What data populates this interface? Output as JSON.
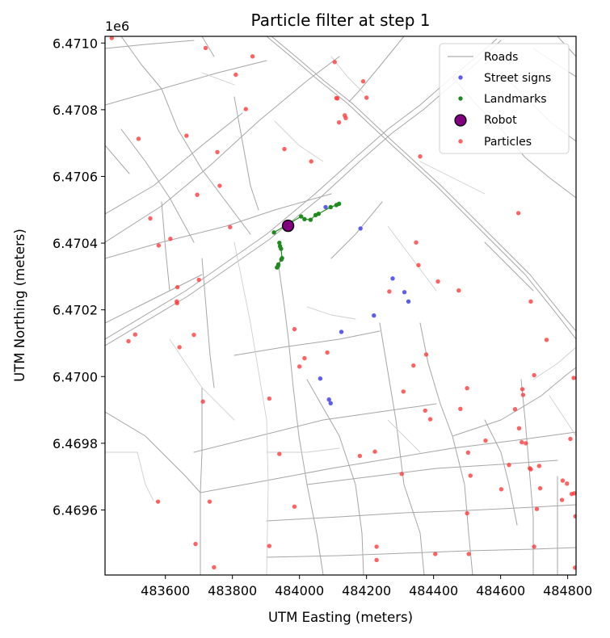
{
  "chart_data": {
    "type": "scatter",
    "title": "Particle filter at step 1",
    "xlabel": "UTM Easting (meters)",
    "ylabel": "UTM Northing (meters)",
    "y_offset_label": "1e6",
    "xlim": [
      483420,
      484825
    ],
    "ylim": [
      6469405,
      6471020
    ],
    "x_ticks": [
      483600,
      483800,
      484000,
      484200,
      484400,
      484600,
      484800
    ],
    "x_tick_labels": [
      "483600",
      "483800",
      "484000",
      "484200",
      "484400",
      "484600",
      "484800"
    ],
    "y_ticks": [
      6469600,
      6469800,
      6470000,
      6470200,
      6470400,
      6470600,
      6470800,
      6471000
    ],
    "y_tick_labels": [
      "6.4696",
      "6.4698",
      "6.4700",
      "6.4702",
      "6.4704",
      "6.4706",
      "6.4708",
      "6.4710"
    ],
    "grid": false,
    "legend_position": "top-right",
    "legend": {
      "roads": "Roads",
      "street_signs": "Street signs",
      "landmarks": "Landmarks",
      "robot": "Robot",
      "particles": "Particles"
    },
    "colors": {
      "roads": "#9a9a9a",
      "street_signs": "#4b4bf0",
      "landmarks": "#1f8a1f",
      "robot": "#800080",
      "particles": "#ff3b3b"
    },
    "series": [
      {
        "name": "Street signs",
        "points": [
          [
            484078,
            6470508
          ],
          [
            484182,
            6470444
          ],
          [
            484278,
            6470294
          ],
          [
            484313,
            6470253
          ],
          [
            484325,
            6470225
          ],
          [
            484222,
            6470183
          ],
          [
            484125,
            6470134
          ],
          [
            484062,
            6469994
          ],
          [
            484088,
            6469931
          ],
          [
            484093,
            6469920
          ]
        ]
      },
      {
        "name": "Landmarks",
        "points": [
          [
            483924,
            6470432
          ],
          [
            484005,
            6470480
          ],
          [
            484015,
            6470472
          ],
          [
            484033,
            6470470
          ],
          [
            484048,
            6470484
          ],
          [
            484057,
            6470488
          ],
          [
            484093,
            6470508
          ],
          [
            484110,
            6470514
          ],
          [
            484118,
            6470518
          ],
          [
            483940,
            6470401
          ],
          [
            483942,
            6470391
          ],
          [
            483945,
            6470383
          ],
          [
            483948,
            6470355
          ],
          [
            483946,
            6470351
          ],
          [
            483937,
            6470336
          ],
          [
            483936,
            6470331
          ],
          [
            483933,
            6470327
          ]
        ]
      },
      {
        "name": "Robot",
        "points": [
          [
            483966,
            6470452
          ]
        ]
      },
      {
        "name": "Particles",
        "points": [
          [
            483440,
            6471015
          ],
          [
            483720,
            6470985
          ],
          [
            483860,
            6470960
          ],
          [
            484105,
            6470943
          ],
          [
            484190,
            6470885
          ],
          [
            483810,
            6470905
          ],
          [
            483840,
            6470802
          ],
          [
            484110,
            6470835
          ],
          [
            484113,
            6470834
          ],
          [
            484200,
            6470836
          ],
          [
            484135,
            6470783
          ],
          [
            484138,
            6470775
          ],
          [
            484118,
            6470762
          ],
          [
            483520,
            6470713
          ],
          [
            483663,
            6470722
          ],
          [
            483755,
            6470673
          ],
          [
            483955,
            6470682
          ],
          [
            484035,
            6470645
          ],
          [
            484360,
            6470660
          ],
          [
            483695,
            6470545
          ],
          [
            483762,
            6470572
          ],
          [
            483555,
            6470474
          ],
          [
            483793,
            6470448
          ],
          [
            483580,
            6470393
          ],
          [
            483615,
            6470413
          ],
          [
            484348,
            6470402
          ],
          [
            484355,
            6470334
          ],
          [
            484653,
            6470490
          ],
          [
            483636,
            6470268
          ],
          [
            483634,
            6470225
          ],
          [
            483635,
            6470220
          ],
          [
            483700,
            6470290
          ],
          [
            484413,
            6470285
          ],
          [
            484475,
            6470258
          ],
          [
            484268,
            6470255
          ],
          [
            484690,
            6470225
          ],
          [
            483510,
            6470126
          ],
          [
            483490,
            6470106
          ],
          [
            483642,
            6470088
          ],
          [
            483685,
            6470125
          ],
          [
            483985,
            6470142
          ],
          [
            484083,
            6470072
          ],
          [
            484015,
            6470055
          ],
          [
            484378,
            6470066
          ],
          [
            484340,
            6470033
          ],
          [
            484000,
            6470030
          ],
          [
            484737,
            6470110
          ],
          [
            484700,
            6470004
          ],
          [
            484818,
            6469996
          ],
          [
            483712,
            6469925
          ],
          [
            483910,
            6469934
          ],
          [
            484310,
            6469955
          ],
          [
            484500,
            6469965
          ],
          [
            484375,
            6469898
          ],
          [
            484390,
            6469872
          ],
          [
            484480,
            6469903
          ],
          [
            484665,
            6469962
          ],
          [
            484667,
            6469945
          ],
          [
            484643,
            6469902
          ],
          [
            484655,
            6469845
          ],
          [
            484663,
            6469803
          ],
          [
            484675,
            6469800
          ],
          [
            484808,
            6469813
          ],
          [
            483940,
            6469768
          ],
          [
            484180,
            6469762
          ],
          [
            484225,
            6469775
          ],
          [
            484503,
            6469772
          ],
          [
            484555,
            6469808
          ],
          [
            484625,
            6469735
          ],
          [
            484687,
            6469725
          ],
          [
            484690,
            6469722
          ],
          [
            484715,
            6469732
          ],
          [
            484510,
            6469703
          ],
          [
            484305,
            6469708
          ],
          [
            484602,
            6469662
          ],
          [
            484718,
            6469665
          ],
          [
            484785,
            6469688
          ],
          [
            484798,
            6469679
          ],
          [
            484812,
            6469648
          ],
          [
            484820,
            6469650
          ],
          [
            484783,
            6469630
          ],
          [
            483578,
            6469625
          ],
          [
            483732,
            6469625
          ],
          [
            483985,
            6469610
          ],
          [
            484500,
            6469590
          ],
          [
            484708,
            6469603
          ],
          [
            484823,
            6469581
          ],
          [
            483690,
            6469498
          ],
          [
            483910,
            6469492
          ],
          [
            484230,
            6469490
          ],
          [
            484700,
            6469490
          ],
          [
            484230,
            6469450
          ],
          [
            484405,
            6469468
          ],
          [
            484505,
            6469468
          ],
          [
            483745,
            6469428
          ],
          [
            484822,
            6469427
          ]
        ]
      }
    ]
  }
}
